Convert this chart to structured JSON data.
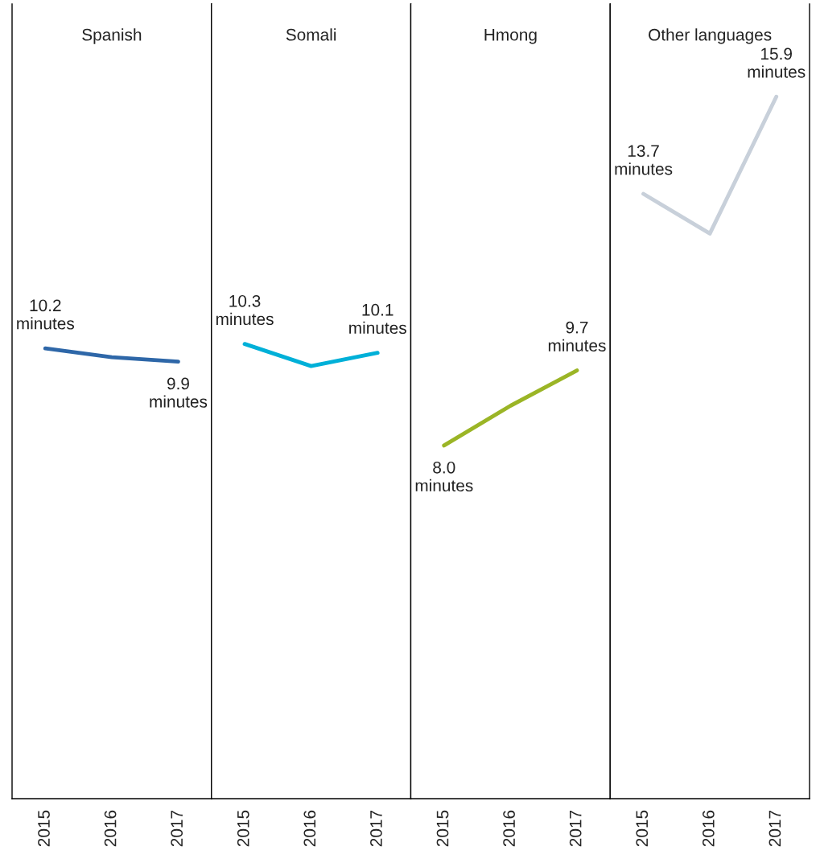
{
  "chart_data": [
    {
      "type": "line",
      "title": "Spanish",
      "categories": [
        "2015",
        "2016",
        "2017"
      ],
      "relative": false,
      "ylim": [
        0,
        18
      ],
      "tick_labels": "x",
      "series": [
        {
          "color": "#2e67a8",
          "values": [
            10.2,
            10.0,
            9.9
          ],
          "value_labels": [
            "10.2 minutes",
            null,
            "9.9 minutes"
          ]
        }
      ]
    },
    {
      "type": "line",
      "title": "Somali",
      "categories": [
        "2015",
        "2016",
        "2017"
      ],
      "ylim": [
        0,
        18
      ],
      "tick_labels": "x",
      "series": [
        {
          "color": "#00b0d8",
          "values": [
            10.3,
            9.8,
            10.1
          ],
          "value_labels": [
            "10.3 minutes",
            null,
            "10.1 minutes"
          ]
        }
      ]
    },
    {
      "type": "line",
      "title": "Hmong",
      "categories": [
        "2015",
        "2016",
        "2017"
      ],
      "ylim": [
        0,
        18
      ],
      "tick_labels": "x",
      "series": [
        {
          "color": "#9bb526",
          "values": [
            8.0,
            8.9,
            9.7
          ],
          "value_labels": [
            "8.0 minutes",
            null,
            "9.7 minutes"
          ]
        }
      ]
    },
    {
      "type": "line",
      "title": "Other languages",
      "categories": [
        "2015",
        "2016",
        "2017"
      ],
      "ylim": [
        0,
        18
      ],
      "tick_labels": "x",
      "series": [
        {
          "color": "#c8d0da",
          "values": [
            13.7,
            12.8,
            15.9
          ],
          "value_labels": [
            "13.7 minutes",
            null,
            "15.9 minutes"
          ]
        }
      ]
    }
  ]
}
